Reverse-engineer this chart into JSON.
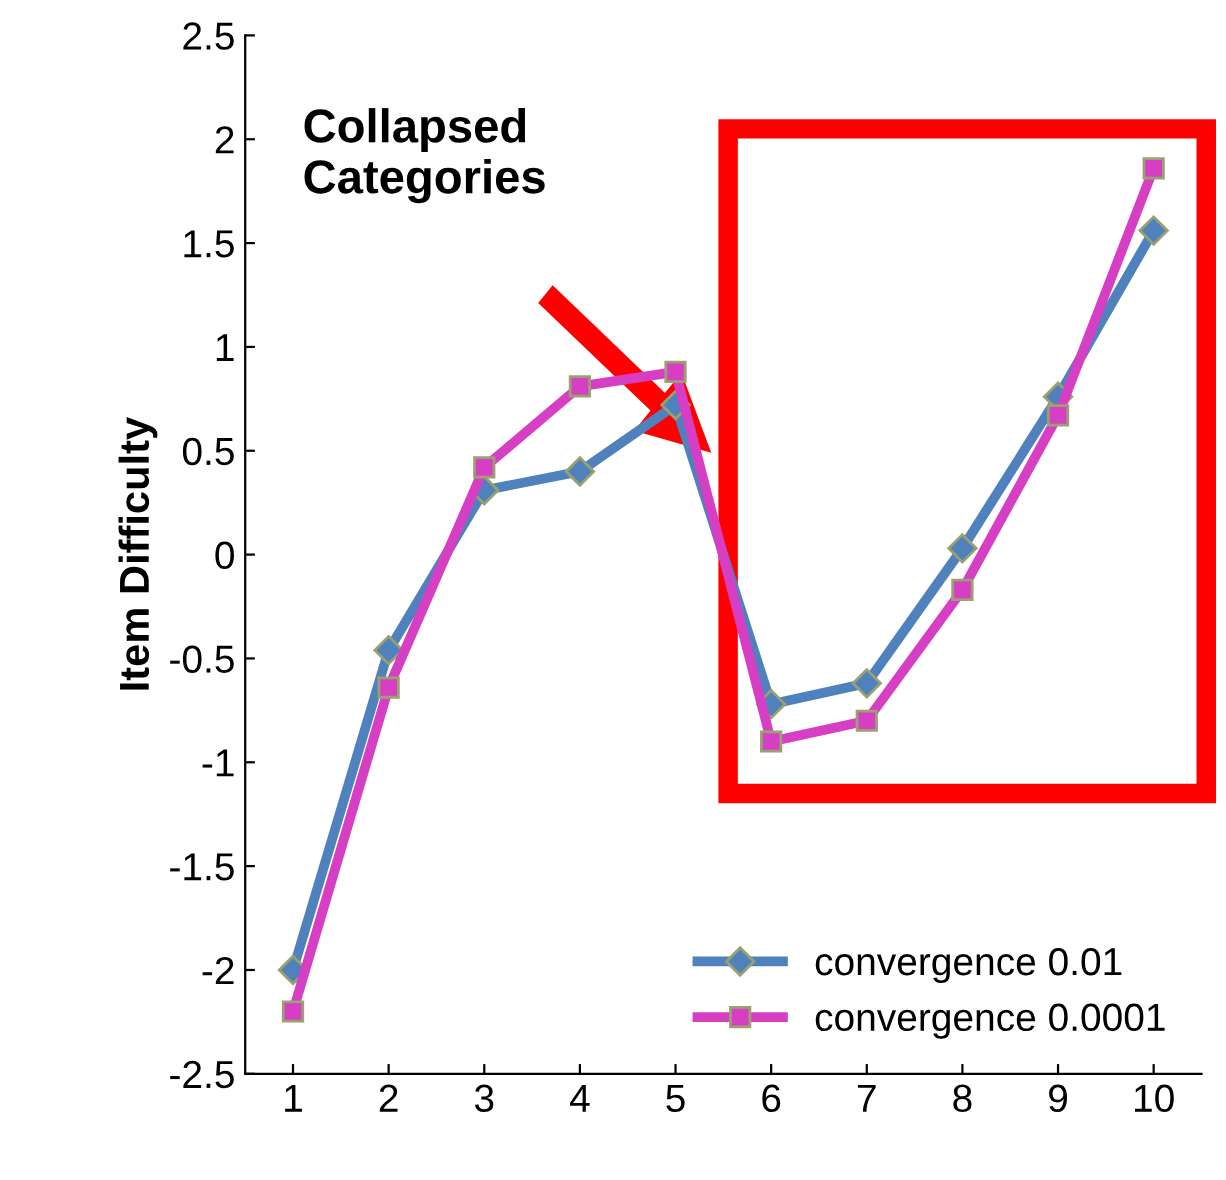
{
  "chart_data": {
    "type": "line",
    "ylabel": "Item Difficulty",
    "categories": [
      "1",
      "2",
      "3",
      "4",
      "5",
      "6",
      "7",
      "8",
      "9",
      "10"
    ],
    "series": [
      {
        "name": "convergence 0.01",
        "color": "#4f81bd",
        "marker": "diamond",
        "values": [
          -2.0,
          -0.46,
          0.31,
          0.4,
          0.72,
          -0.72,
          -0.62,
          0.03,
          0.76,
          1.56
        ]
      },
      {
        "name": "convergence 0.0001",
        "color": "#d63fc4",
        "marker": "square",
        "values": [
          -2.2,
          -0.64,
          0.42,
          0.81,
          0.88,
          -0.9,
          -0.8,
          -0.17,
          0.67,
          1.86
        ]
      }
    ],
    "ylim": [
      -2.5,
      2.5
    ],
    "yticks": [
      -2.5,
      -2,
      -1.5,
      -1,
      -0.5,
      0,
      0.5,
      1,
      1.5,
      2,
      2.5
    ],
    "annotations": [
      "Collapsed\nCategories"
    ],
    "legend": "lower right",
    "grid": false
  }
}
